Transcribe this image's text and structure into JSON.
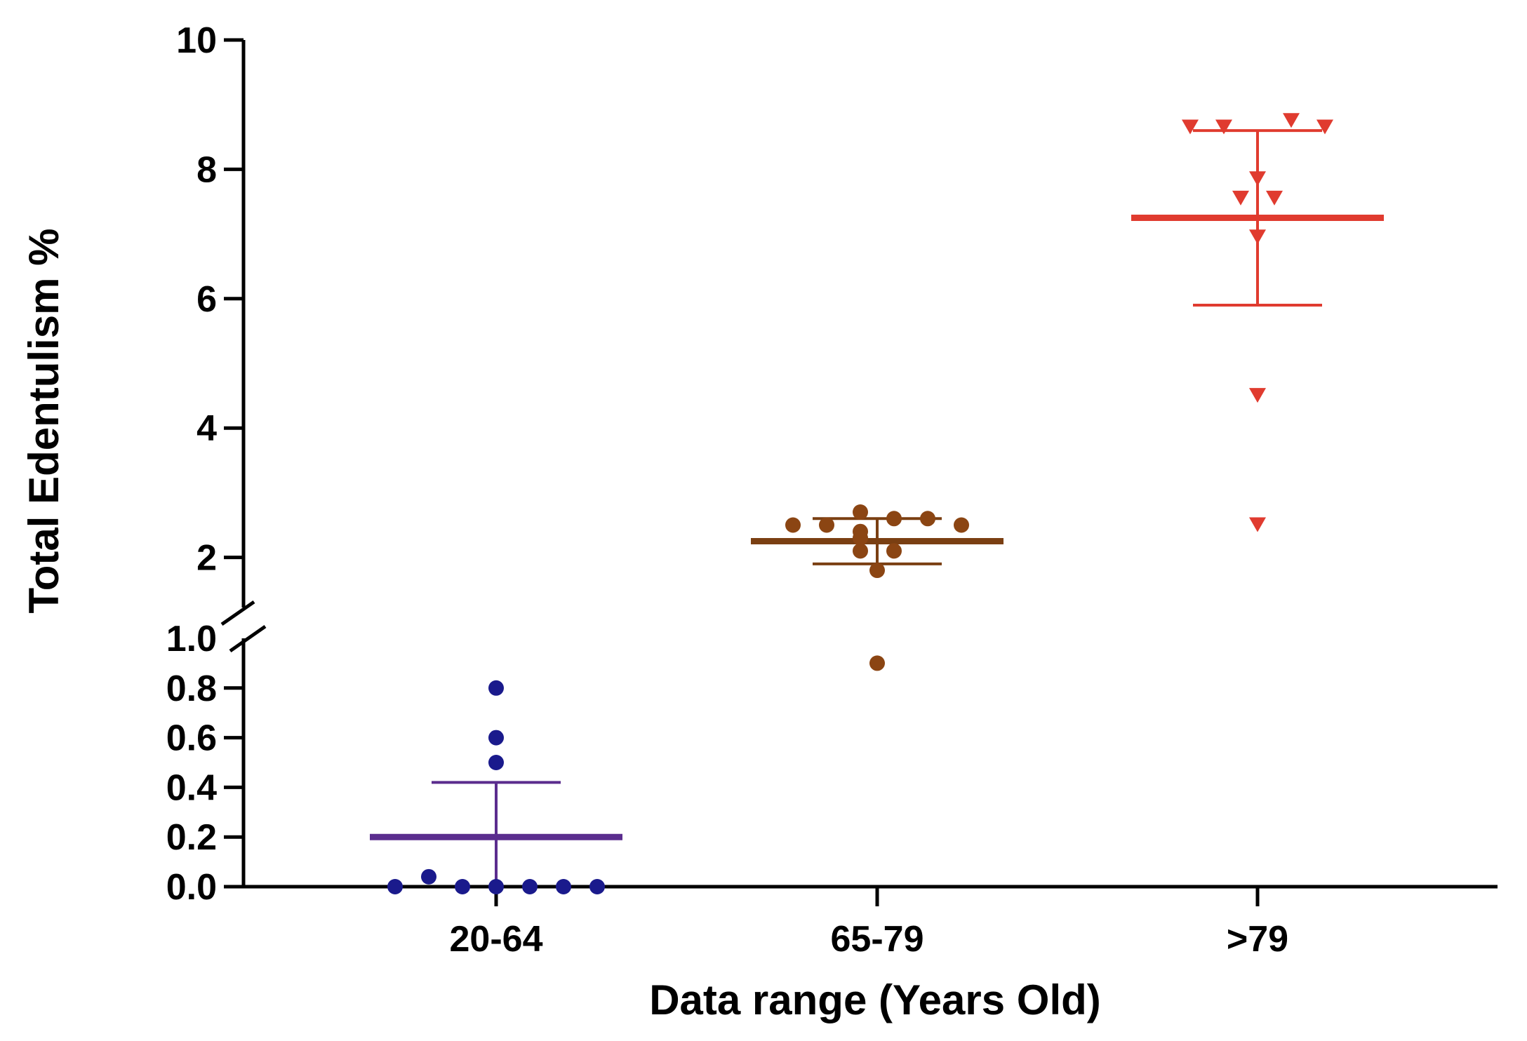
{
  "chart_data": {
    "type": "scatter",
    "title": "",
    "xlabel": "Data range (Years Old)",
    "ylabel": "Total Edentulism  %",
    "categories": [
      "20-64",
      "65-79",
      ">79"
    ],
    "y_axis_break": true,
    "lower_segment": {
      "ylim": [
        0,
        1.0
      ],
      "ticks": [
        "0.0",
        "0.2",
        "0.4",
        "0.6",
        "0.8",
        "1.0"
      ]
    },
    "upper_segment": {
      "ylim": [
        1.0,
        10
      ],
      "ticks": [
        "2",
        "4",
        "6",
        "8",
        "10"
      ]
    },
    "series": [
      {
        "name": "20-64",
        "category": "20-64",
        "marker": "circle",
        "color": "#1a1a8c",
        "summary_color": "#5b2d8e",
        "points": [
          {
            "offset": -3,
            "value": 0.0
          },
          {
            "offset": -2,
            "value": 0.04
          },
          {
            "offset": -1,
            "value": 0.0
          },
          {
            "offset": 0,
            "value": 0.0
          },
          {
            "offset": 1,
            "value": 0.0
          },
          {
            "offset": 2,
            "value": 0.0
          },
          {
            "offset": 3,
            "value": 0.0
          },
          {
            "offset": 0,
            "value": 0.5
          },
          {
            "offset": 0,
            "value": 0.6
          },
          {
            "offset": 0,
            "value": 0.8
          }
        ],
        "mean": 0.2,
        "upper": 0.42,
        "lower": 0.0
      },
      {
        "name": "65-79",
        "category": "65-79",
        "marker": "circle",
        "color": "#8b4513",
        "summary_color": "#7a3f12",
        "points": [
          {
            "offset": -2.5,
            "value": 2.5
          },
          {
            "offset": -1.5,
            "value": 2.5
          },
          {
            "offset": -0.5,
            "value": 2.7
          },
          {
            "offset": -0.5,
            "value": 2.4
          },
          {
            "offset": -0.5,
            "value": 2.3
          },
          {
            "offset": -0.5,
            "value": 2.1
          },
          {
            "offset": 0.5,
            "value": 2.6
          },
          {
            "offset": 0.5,
            "value": 2.1
          },
          {
            "offset": 1.5,
            "value": 2.6
          },
          {
            "offset": 2.5,
            "value": 2.5
          },
          {
            "offset": 0,
            "value": 1.8
          },
          {
            "offset": 0,
            "value": 0.9
          }
        ],
        "mean": 2.25,
        "upper": 2.6,
        "lower": 1.9
      },
      {
        "name": ">79",
        "category": ">79",
        "marker": "triangle-down",
        "color": "#e03b2f",
        "summary_color": "#e03b2f",
        "points": [
          {
            "offset": -2,
            "value": 8.65
          },
          {
            "offset": -1,
            "value": 8.65
          },
          {
            "offset": 1,
            "value": 8.75
          },
          {
            "offset": 2,
            "value": 8.65
          },
          {
            "offset": 0,
            "value": 7.85
          },
          {
            "offset": -0.5,
            "value": 7.55
          },
          {
            "offset": 0.5,
            "value": 7.55
          },
          {
            "offset": 0,
            "value": 6.95
          },
          {
            "offset": 0,
            "value": 4.5
          },
          {
            "offset": 0,
            "value": 2.5
          }
        ],
        "mean": 7.25,
        "upper": 8.6,
        "lower": 5.9
      }
    ]
  }
}
